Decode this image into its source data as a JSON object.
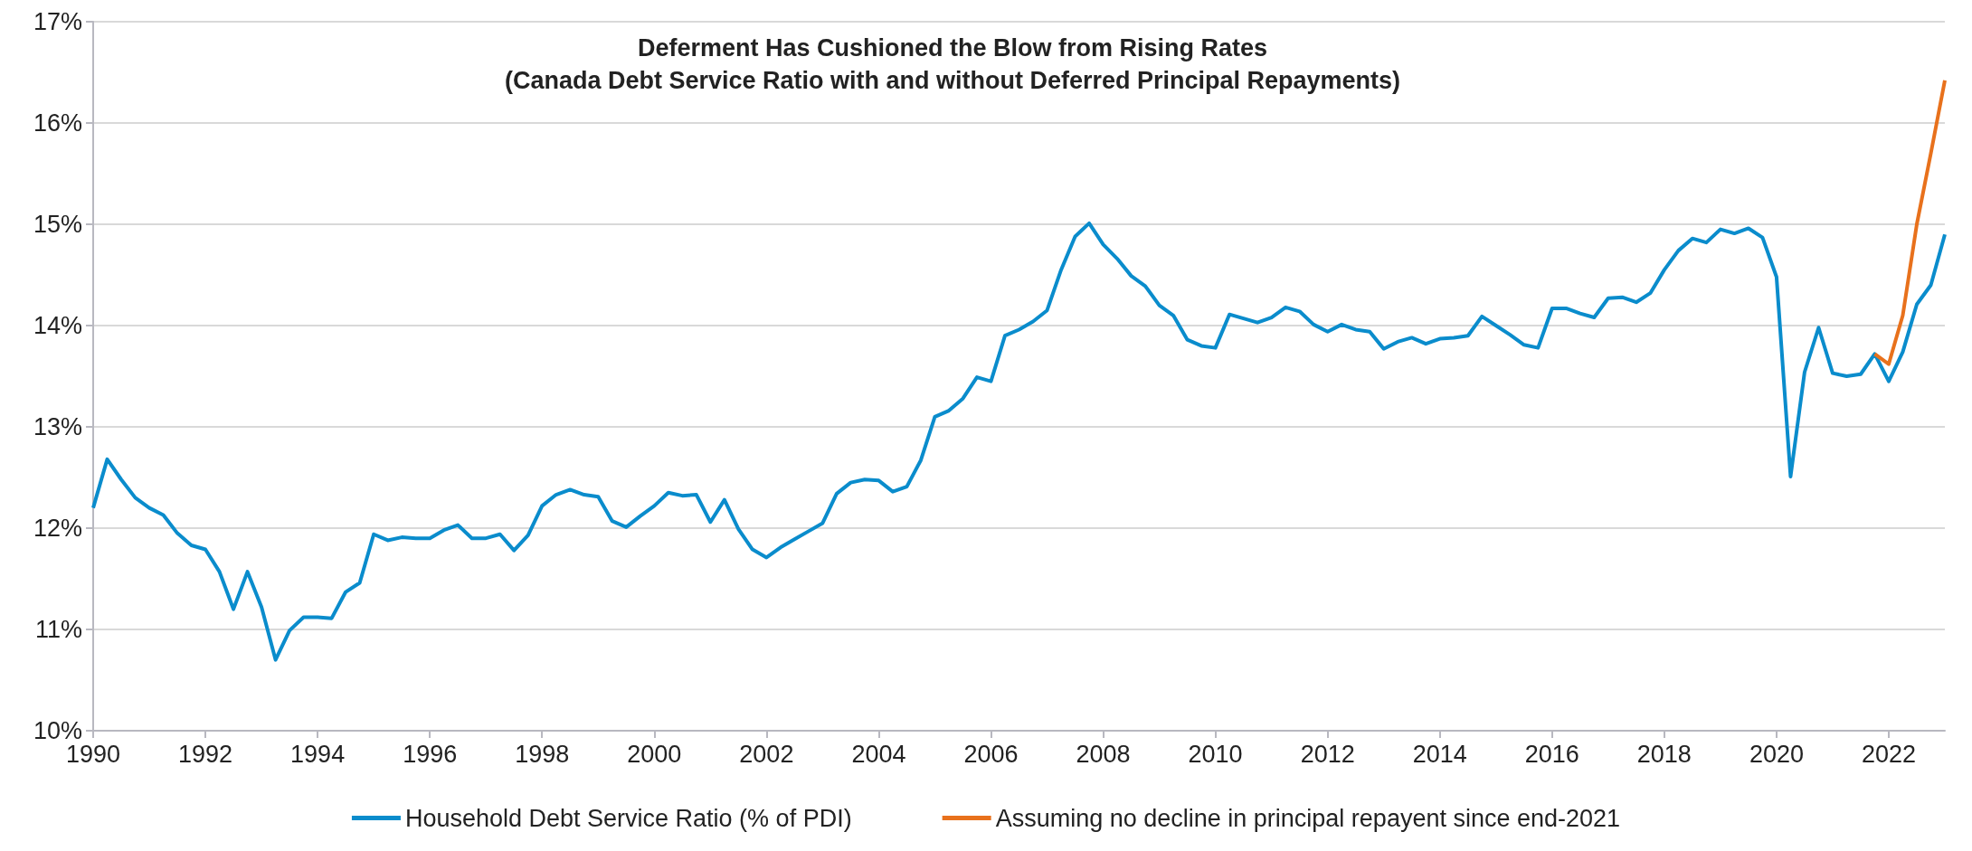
{
  "chart_data": {
    "type": "line",
    "title": "Deferment Has Cushioned the Blow from Rising Rates\n(Canada Debt Service Ratio with and without Deferred Principal Repayments)",
    "series": [
      {
        "name": "Household Debt Service Ratio (% of PDI)",
        "color": "#0a8ccc",
        "x": [
          1990,
          1990.25,
          1990.5,
          1990.75,
          1991,
          1991.25,
          1991.5,
          1991.75,
          1992,
          1992.25,
          1992.5,
          1992.75,
          1993,
          1993.25,
          1993.5,
          1993.75,
          1994,
          1994.25,
          1994.5,
          1994.75,
          1995,
          1995.25,
          1995.5,
          1995.75,
          1996,
          1996.25,
          1996.5,
          1996.75,
          1997,
          1997.25,
          1997.5,
          1997.75,
          1998,
          1998.25,
          1998.5,
          1998.75,
          1999,
          1999.25,
          1999.5,
          1999.75,
          2000,
          2000.25,
          2000.5,
          2000.75,
          2001,
          2001.25,
          2001.5,
          2001.75,
          2002,
          2002.25,
          2002.5,
          2002.75,
          2003,
          2003.25,
          2003.5,
          2003.75,
          2004,
          2004.25,
          2004.5,
          2004.75,
          2005,
          2005.25,
          2005.5,
          2005.75,
          2006,
          2006.25,
          2006.5,
          2006.75,
          2007,
          2007.25,
          2007.5,
          2007.75,
          2008,
          2008.25,
          2008.5,
          2008.75,
          2009,
          2009.25,
          2009.5,
          2009.75,
          2010,
          2010.25,
          2010.5,
          2010.75,
          2011,
          2011.25,
          2011.5,
          2011.75,
          2012,
          2012.25,
          2012.5,
          2012.75,
          2013,
          2013.25,
          2013.5,
          2013.75,
          2014,
          2014.25,
          2014.5,
          2014.75,
          2015,
          2015.25,
          2015.5,
          2015.75,
          2016,
          2016.25,
          2016.5,
          2016.75,
          2017,
          2017.25,
          2017.5,
          2017.75,
          2018,
          2018.25,
          2018.5,
          2018.75,
          2019,
          2019.25,
          2019.5,
          2019.75,
          2020,
          2020.25,
          2020.5,
          2020.75,
          2021,
          2021.25,
          2021.5,
          2021.75,
          2022,
          2022.25,
          2022.5,
          2022.75,
          2023
        ],
        "values": [
          12.2,
          12.68,
          12.48,
          12.3,
          12.2,
          12.13,
          11.95,
          11.83,
          11.79,
          11.57,
          11.2,
          11.57,
          11.22,
          10.7,
          10.99,
          11.12,
          11.12,
          11.11,
          11.37,
          11.46,
          11.94,
          11.88,
          11.91,
          11.9,
          11.9,
          11.98,
          12.03,
          11.9,
          11.9,
          11.94,
          11.78,
          11.93,
          12.22,
          12.33,
          12.38,
          12.33,
          12.31,
          12.07,
          12.01,
          12.12,
          12.22,
          12.35,
          12.32,
          12.33,
          12.06,
          12.28,
          11.99,
          11.79,
          11.71,
          11.81,
          11.89,
          11.97,
          12.05,
          12.34,
          12.45,
          12.48,
          12.47,
          12.36,
          12.41,
          12.67,
          13.1,
          13.16,
          13.28,
          13.49,
          13.45,
          13.9,
          13.96,
          14.04,
          14.15,
          14.55,
          14.88,
          15.01,
          14.8,
          14.66,
          14.49,
          14.39,
          14.2,
          14.1,
          13.86,
          13.8,
          13.78,
          14.11,
          14.07,
          14.03,
          14.08,
          14.18,
          14.14,
          14.01,
          13.94,
          14.01,
          13.96,
          13.94,
          13.77,
          13.84,
          13.88,
          13.82,
          13.87,
          13.88,
          13.9,
          14.09,
          14.0,
          13.91,
          13.81,
          13.78,
          14.17,
          14.17,
          14.12,
          14.08,
          14.27,
          14.28,
          14.23,
          14.32,
          14.55,
          14.74,
          14.86,
          14.82,
          14.95,
          14.91,
          14.96,
          14.87,
          14.48,
          12.51,
          13.54,
          13.98,
          13.53,
          13.5,
          13.52,
          13.72,
          13.45,
          13.74,
          14.21,
          14.4,
          14.9
        ]
      },
      {
        "name": "Assuming no decline in principal repayent since end-2021",
        "color": "#e8711c",
        "x": [
          2021.75,
          2022,
          2022.25,
          2022.5,
          2022.75,
          2023
        ],
        "values": [
          13.72,
          13.62,
          14.1,
          15.0,
          15.7,
          16.42
        ]
      }
    ],
    "xlim": [
      1990,
      2023
    ],
    "xticks": [
      1990,
      1992,
      1994,
      1996,
      1998,
      2000,
      2002,
      2004,
      2006,
      2008,
      2010,
      2012,
      2014,
      2016,
      2018,
      2020,
      2022
    ],
    "ylim": [
      10,
      17
    ],
    "yticks": [
      {
        "value": 10,
        "label": "10%"
      },
      {
        "value": 11,
        "label": "11%"
      },
      {
        "value": 12,
        "label": "12%"
      },
      {
        "value": 13,
        "label": "13%"
      },
      {
        "value": 14,
        "label": "14%"
      },
      {
        "value": 15,
        "label": "15%"
      },
      {
        "value": 16,
        "label": "16%"
      },
      {
        "value": 17,
        "label": "17%"
      }
    ],
    "grid": "y",
    "legend": "bottom",
    "line_style": "solid"
  }
}
